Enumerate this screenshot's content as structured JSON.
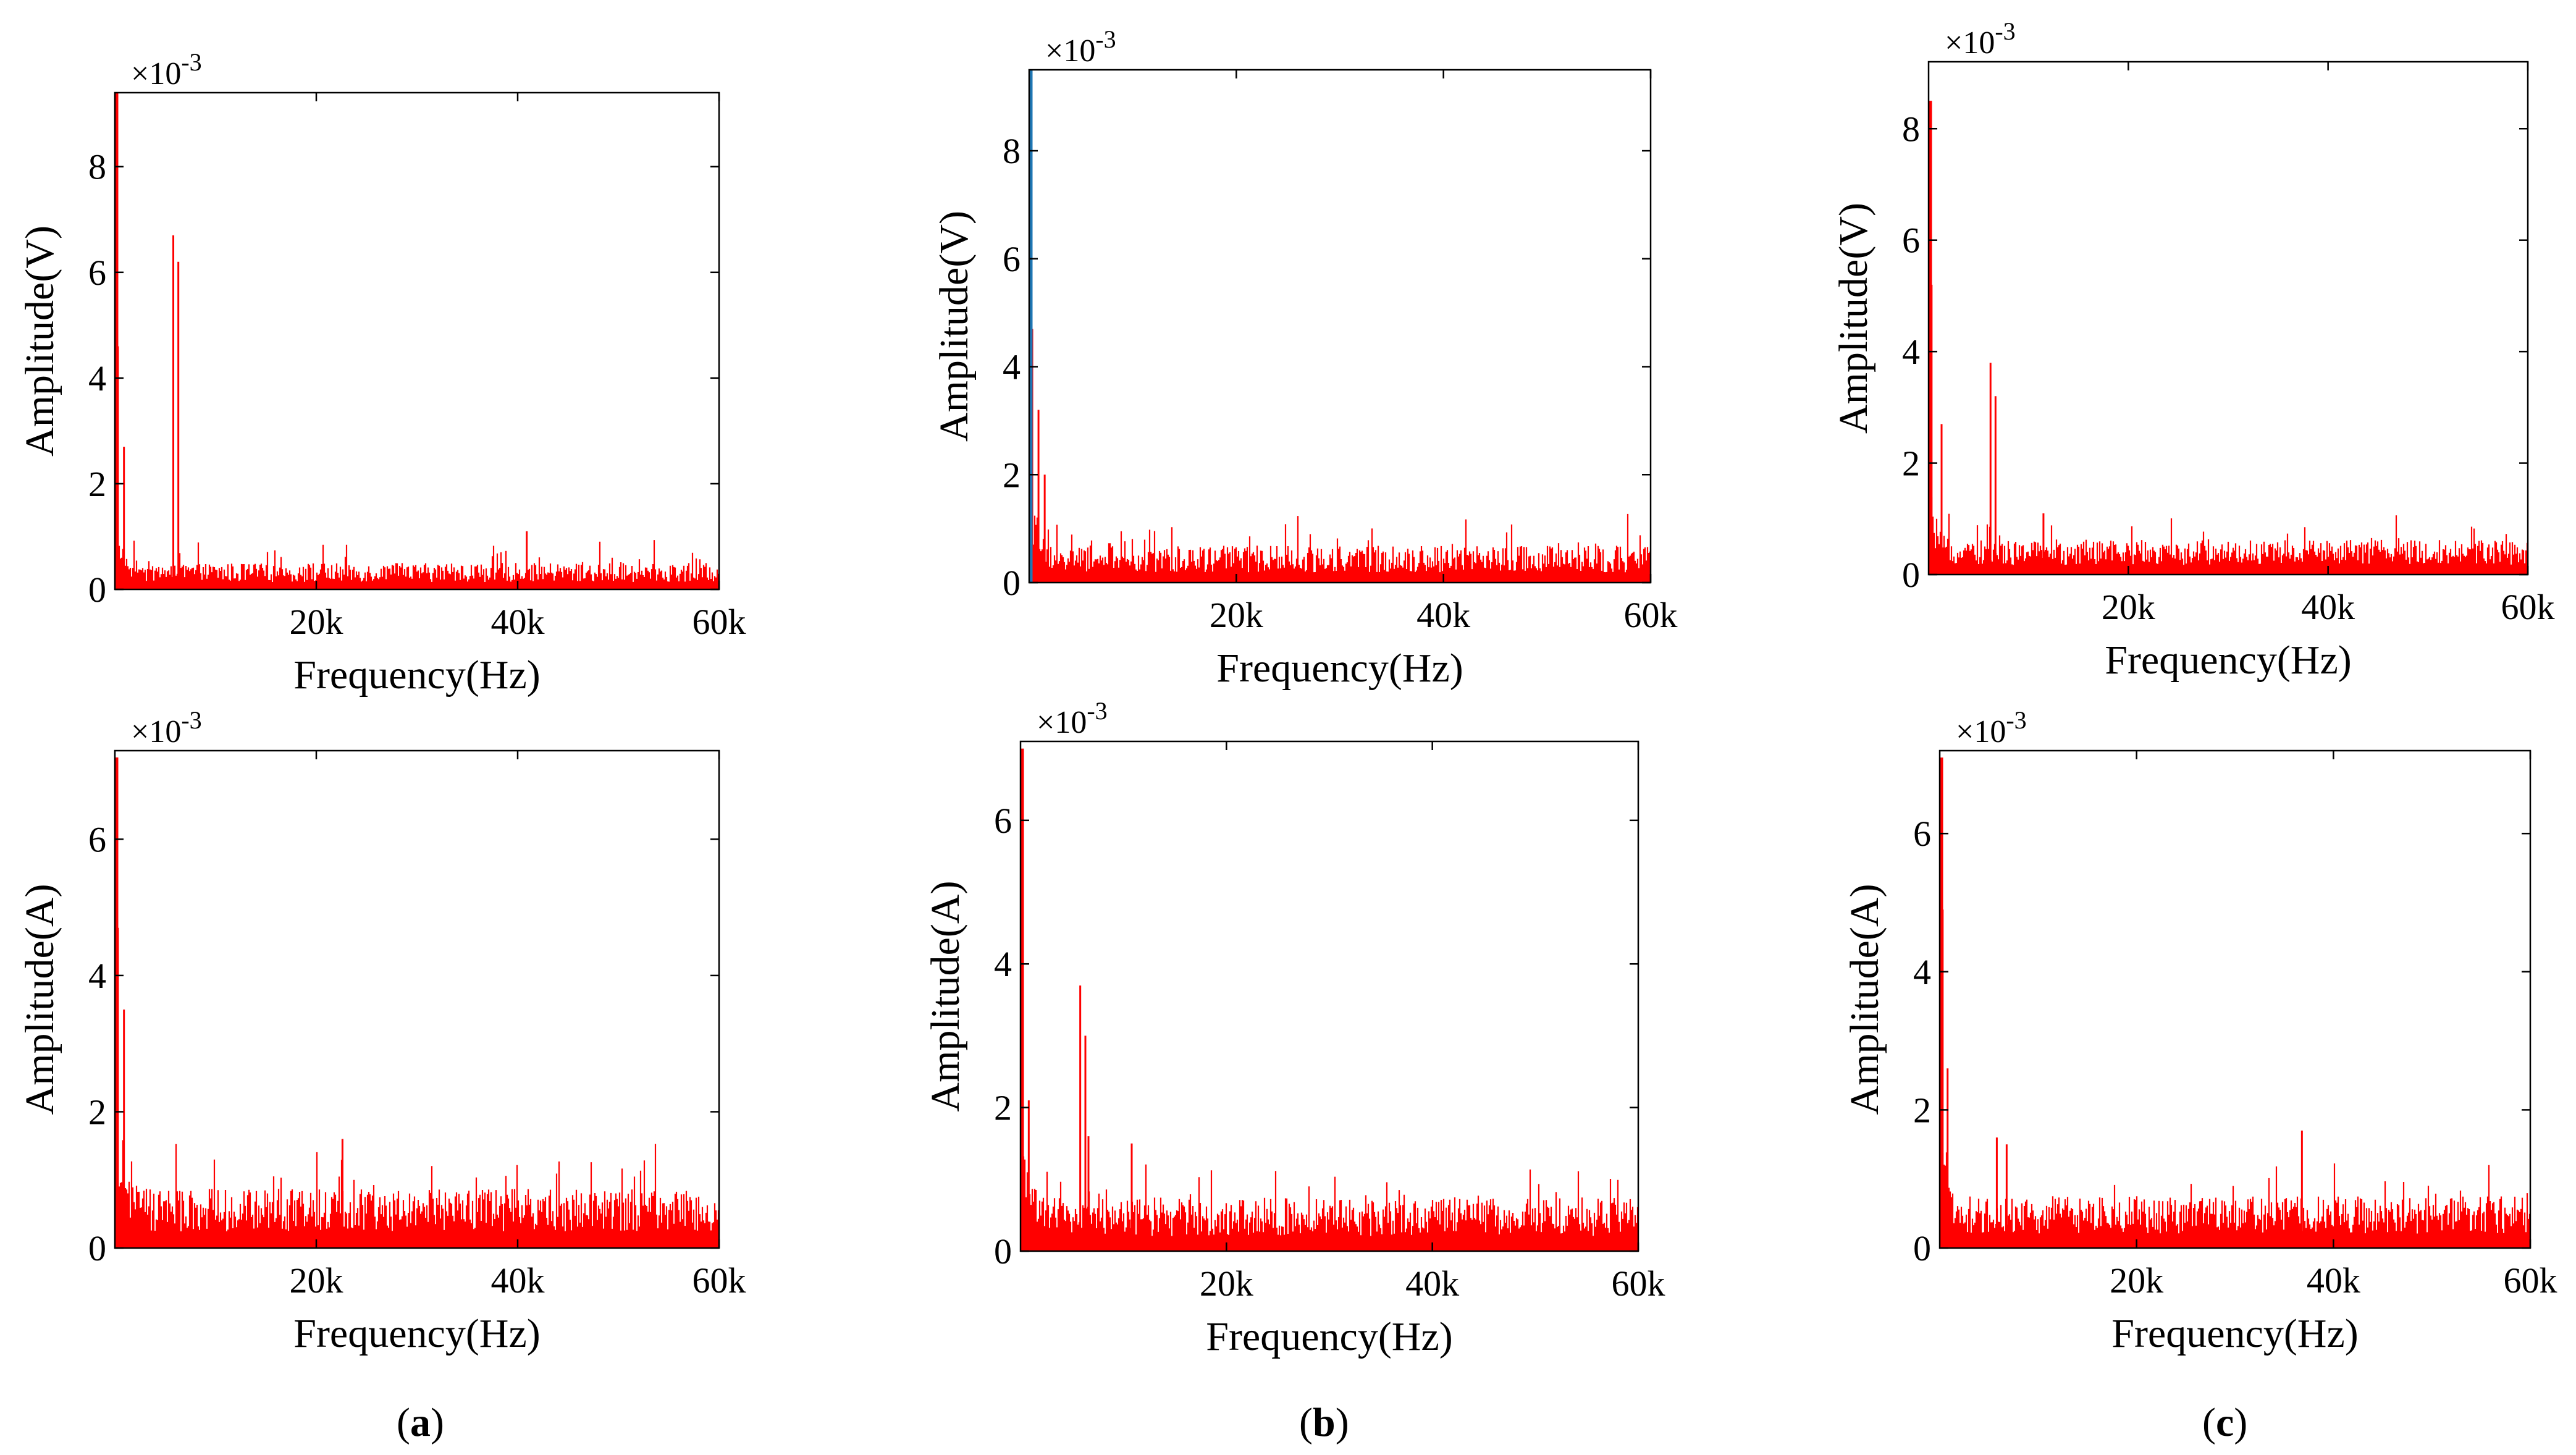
{
  "figure": {
    "panel_labels": [
      {
        "open": "(",
        "letter": "a",
        "close": ")"
      },
      {
        "open": "(",
        "letter": "b",
        "close": ")"
      },
      {
        "open": "(",
        "letter": "c",
        "close": ")"
      }
    ]
  },
  "chart_data": [
    {
      "id": "a-top",
      "type": "bar",
      "style": "spectrum",
      "xlabel": "Frequency(Hz)",
      "ylabel": "Amplitude(V)",
      "exponent_label": "×10-3",
      "xlim": [
        0,
        60000
      ],
      "ylim": [
        0,
        9.4
      ],
      "xticks": [
        20000,
        40000,
        60000
      ],
      "xtick_labels": [
        "20k",
        "40k",
        "60k"
      ],
      "yticks": [
        0,
        2,
        4,
        6,
        8
      ],
      "ytick_labels": [
        "0",
        "2",
        "4",
        "6",
        "8"
      ],
      "dc_value": 9.4,
      "noise_floor": 0.4,
      "peaks": [
        {
          "f": 300,
          "a": 4.6
        },
        {
          "f": 900,
          "a": 2.7
        },
        {
          "f": 5800,
          "a": 6.7
        },
        {
          "f": 6300,
          "a": 6.2
        },
        {
          "f": 40900,
          "a": 1.1
        }
      ],
      "marker_color": "#ff0000"
    },
    {
      "id": "b-top",
      "type": "bar",
      "style": "spectrum",
      "xlabel": "Frequency(Hz)",
      "ylabel": "Amplitude(V)",
      "exponent_label": "×10-3",
      "xlim": [
        0,
        60000
      ],
      "ylim": [
        0,
        9.5
      ],
      "xticks": [
        20000,
        40000,
        60000
      ],
      "xtick_labels": [
        "20k",
        "40k",
        "60k"
      ],
      "yticks": [
        0,
        2,
        4,
        6,
        8
      ],
      "ytick_labels": [
        "0",
        "2",
        "4",
        "6",
        "8"
      ],
      "dc_value": 9.5,
      "dc_color": "#1f77b4",
      "noise_floor": 0.55,
      "peaks": [
        {
          "f": 300,
          "a": 4.7
        },
        {
          "f": 900,
          "a": 3.2
        },
        {
          "f": 1500,
          "a": 2.0
        }
      ],
      "marker_color": "#ff0000"
    },
    {
      "id": "c-top",
      "type": "bar",
      "style": "spectrum",
      "xlabel": "Frequency(Hz)",
      "ylabel": "Amplitude(V)",
      "exponent_label": "×10-3",
      "xlim": [
        0,
        60000
      ],
      "ylim": [
        0,
        9.2
      ],
      "xticks": [
        20000,
        40000,
        60000
      ],
      "xtick_labels": [
        "20k",
        "40k",
        "60k"
      ],
      "yticks": [
        0,
        2,
        4,
        6,
        8
      ],
      "ytick_labels": [
        "0",
        "2",
        "4",
        "6",
        "8"
      ],
      "dc_value": 8.5,
      "noise_floor": 0.5,
      "peaks": [
        {
          "f": 300,
          "a": 5.2
        },
        {
          "f": 1300,
          "a": 2.7
        },
        {
          "f": 6200,
          "a": 3.8
        },
        {
          "f": 6700,
          "a": 3.2
        },
        {
          "f": 11500,
          "a": 1.1
        }
      ],
      "marker_color": "#ff0000"
    },
    {
      "id": "a-bottom",
      "type": "bar",
      "style": "spectrum",
      "xlabel": "Frequency(Hz)",
      "ylabel": "Amplitude(A)",
      "exponent_label": "×10-3",
      "xlim": [
        0,
        60000
      ],
      "ylim": [
        0,
        7.3
      ],
      "xticks": [
        20000,
        40000,
        60000
      ],
      "xtick_labels": [
        "20k",
        "40k",
        "60k"
      ],
      "yticks": [
        0,
        2,
        4,
        6
      ],
      "ytick_labels": [
        "0",
        "2",
        "4",
        "6"
      ],
      "dc_value": 7.2,
      "noise_floor": 0.7,
      "peaks": [
        {
          "f": 300,
          "a": 4.7
        },
        {
          "f": 900,
          "a": 3.5
        },
        {
          "f": 22600,
          "a": 1.6
        }
      ],
      "marker_color": "#ff0000"
    },
    {
      "id": "b-bottom",
      "type": "bar",
      "style": "spectrum",
      "xlabel": "Frequency(Hz)",
      "ylabel": "Amplitude(A)",
      "exponent_label": "×10-3",
      "xlim": [
        0,
        60000
      ],
      "ylim": [
        0,
        7.1
      ],
      "xticks": [
        20000,
        40000,
        60000
      ],
      "xtick_labels": [
        "20k",
        "40k",
        "60k"
      ],
      "yticks": [
        0,
        2,
        4,
        6
      ],
      "ytick_labels": [
        "0",
        "2",
        "4",
        "6"
      ],
      "dc_value": 7.0,
      "noise_floor": 0.6,
      "peaks": [
        {
          "f": 200,
          "a": 5.6
        },
        {
          "f": 800,
          "a": 2.1
        },
        {
          "f": 5800,
          "a": 3.7
        },
        {
          "f": 6300,
          "a": 3.0
        },
        {
          "f": 6600,
          "a": 1.6
        },
        {
          "f": 10800,
          "a": 1.5
        }
      ],
      "marker_color": "#ff0000"
    },
    {
      "id": "c-bottom",
      "type": "bar",
      "style": "spectrum",
      "xlabel": "Frequency(Hz)",
      "ylabel": "Amplitude(A)",
      "exponent_label": "×10-3",
      "xlim": [
        0,
        60000
      ],
      "ylim": [
        0,
        7.2
      ],
      "xticks": [
        20000,
        40000,
        60000
      ],
      "xtick_labels": [
        "20k",
        "40k",
        "60k"
      ],
      "yticks": [
        0,
        2,
        4,
        6
      ],
      "ytick_labels": [
        "0",
        "2",
        "4",
        "6"
      ],
      "dc_value": 7.1,
      "noise_floor": 0.6,
      "peaks": [
        {
          "f": 300,
          "a": 4.9
        },
        {
          "f": 800,
          "a": 2.6
        },
        {
          "f": 5800,
          "a": 1.6
        },
        {
          "f": 6800,
          "a": 1.5
        },
        {
          "f": 36800,
          "a": 1.7
        }
      ],
      "marker_color": "#ff0000"
    }
  ]
}
